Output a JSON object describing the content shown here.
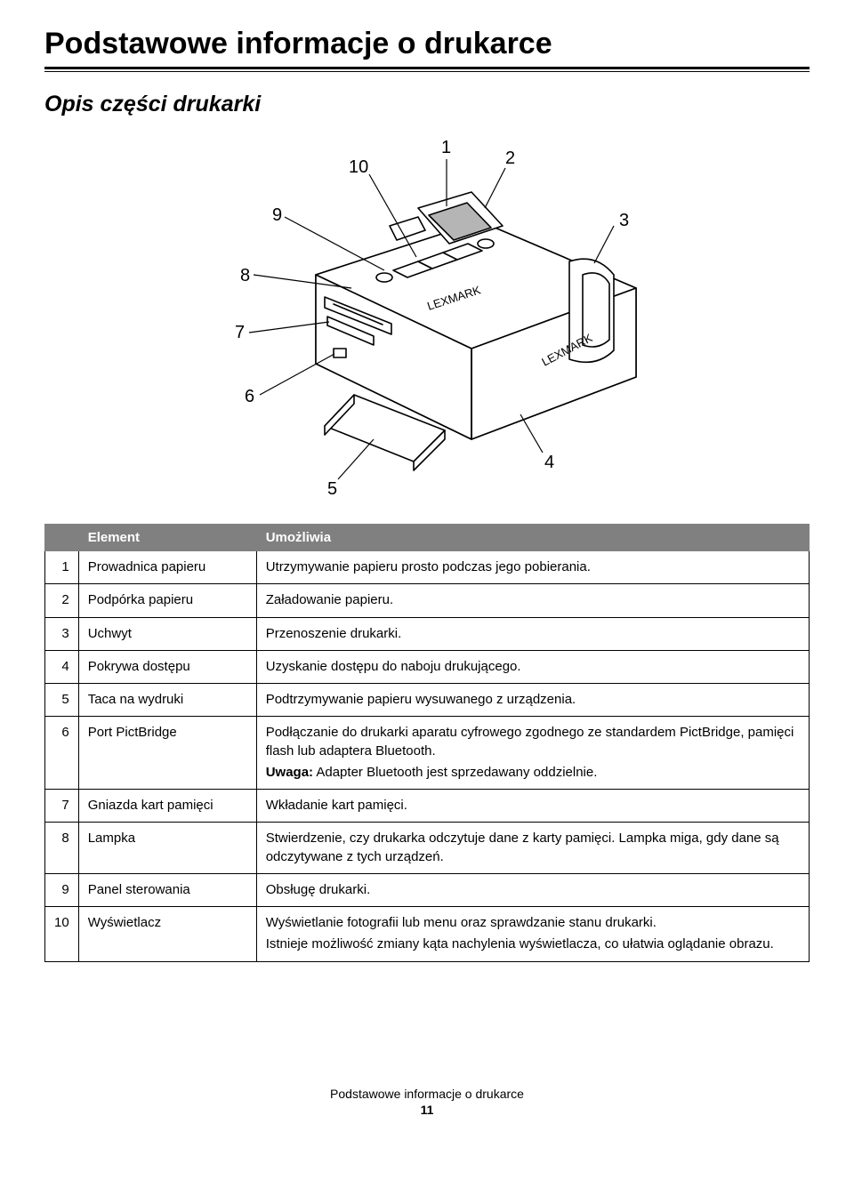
{
  "page": {
    "title": "Podstawowe informacje o drukarce",
    "section": "Opis części drukarki",
    "footer_text": "Podstawowe informacje o drukarce",
    "page_number": "11"
  },
  "diagram": {
    "callouts": [
      "1",
      "2",
      "3",
      "4",
      "5",
      "6",
      "7",
      "8",
      "9",
      "10"
    ],
    "brand_text": "LEXMARK",
    "font_size_pt": 20,
    "stroke_color": "#000000",
    "fill_color": "#ffffff",
    "background": "#ffffff"
  },
  "table": {
    "headers": {
      "num": "",
      "element": "Element",
      "desc": "Umożliwia"
    },
    "header_bg": "#808080",
    "header_fg": "#ffffff",
    "border_color": "#000000",
    "font_size_pt": 15,
    "rows": [
      {
        "num": "1",
        "element": "Prowadnica papieru",
        "desc": [
          "Utrzymywanie papieru prosto podczas jego pobierania."
        ]
      },
      {
        "num": "2",
        "element": "Podpórka papieru",
        "desc": [
          "Załadowanie papieru."
        ]
      },
      {
        "num": "3",
        "element": "Uchwyt",
        "desc": [
          "Przenoszenie drukarki."
        ]
      },
      {
        "num": "4",
        "element": "Pokrywa dostępu",
        "desc": [
          "Uzyskanie dostępu do naboju drukującego."
        ]
      },
      {
        "num": "5",
        "element": "Taca na wydruki",
        "desc": [
          "Podtrzymywanie papieru wysuwanego z urządzenia."
        ]
      },
      {
        "num": "6",
        "element": "Port PictBridge",
        "desc": [
          "Podłączanie do drukarki aparatu cyfrowego zgodnego ze standardem PictBridge, pamięci flash lub adaptera Bluetooth.",
          "<strong>Uwaga:</strong> Adapter Bluetooth jest sprzedawany oddzielnie."
        ]
      },
      {
        "num": "7",
        "element": "Gniazda kart pamięci",
        "desc": [
          "Wkładanie kart pamięci."
        ]
      },
      {
        "num": "8",
        "element": "Lampka",
        "desc": [
          "Stwierdzenie, czy drukarka odczytuje dane z karty pamięci. Lampka miga, gdy dane są odczytywane z tych urządzeń."
        ]
      },
      {
        "num": "9",
        "element": "Panel sterowania",
        "desc": [
          "Obsługę drukarki."
        ]
      },
      {
        "num": "10",
        "element": "Wyświetlacz",
        "desc": [
          "Wyświetlanie fotografii lub menu oraz sprawdzanie stanu drukarki.",
          "Istnieje możliwość zmiany kąta nachylenia wyświetlacza, co ułatwia oglądanie obrazu."
        ]
      }
    ]
  }
}
